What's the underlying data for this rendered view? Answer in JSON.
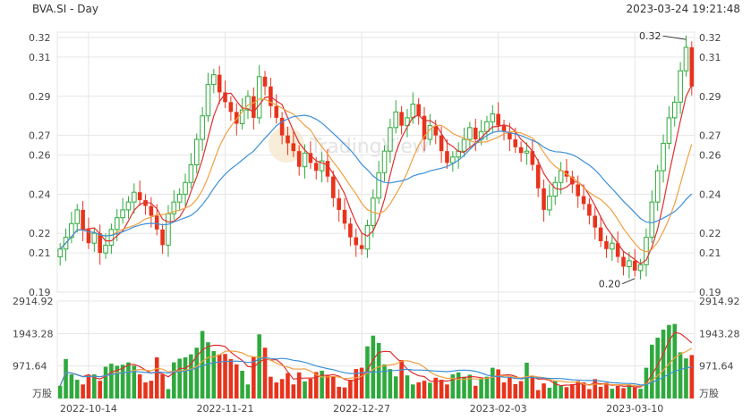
{
  "header": {
    "symbol_title": "BVA.SI - Day",
    "timestamp": "2023-03-24 19:21:48"
  },
  "chart_data": {
    "type": "candlestick",
    "price_axis": {
      "ylim": [
        0.19,
        0.32
      ],
      "ticks": [
        "0.32",
        "0.31",
        "0.29",
        "0.27",
        "0.26",
        "0.24",
        "0.22",
        "0.21",
        "0.19"
      ]
    },
    "volume_axis": {
      "ylim": [
        0,
        2914.92
      ],
      "ticks": [
        "2914.92",
        "1943.28",
        "971.64"
      ],
      "unit_label": "万股"
    },
    "x_ticks": [
      {
        "index": 5,
        "label": "2022-10-14"
      },
      {
        "index": 29,
        "label": "2022-11-21"
      },
      {
        "index": 53,
        "label": "2022-12-27"
      },
      {
        "index": 77,
        "label": "2023-02-03"
      },
      {
        "index": 101,
        "label": "2023-03-10"
      }
    ],
    "annotations": {
      "max_label": "0.32",
      "min_label": "0.20"
    },
    "watermark": "TradingView",
    "colors": {
      "up": "#2eaa3c",
      "down": "#e8331c",
      "ma_short": "#e03030",
      "ma_mid": "#f0a040",
      "ma_long": "#3b8fd8",
      "grid": "#e6e6e6"
    },
    "series": [
      {
        "name": "close",
        "values": [
          0.212,
          0.218,
          0.225,
          0.232,
          0.222,
          0.215,
          0.22,
          0.21,
          0.214,
          0.222,
          0.228,
          0.232,
          0.236,
          0.241,
          0.237,
          0.234,
          0.229,
          0.222,
          0.214,
          0.23,
          0.236,
          0.24,
          0.246,
          0.255,
          0.268,
          0.28,
          0.296,
          0.301,
          0.292,
          0.287,
          0.282,
          0.276,
          0.283,
          0.29,
          0.279,
          0.3,
          0.295,
          0.285,
          0.279,
          0.27,
          0.266,
          0.262,
          0.254,
          0.261,
          0.256,
          0.252,
          0.257,
          0.249,
          0.238,
          0.232,
          0.225,
          0.218,
          0.214,
          0.212,
          0.224,
          0.238,
          0.251,
          0.262,
          0.274,
          0.282,
          0.275,
          0.279,
          0.286,
          0.28,
          0.268,
          0.275,
          0.27,
          0.262,
          0.256,
          0.259,
          0.262,
          0.268,
          0.274,
          0.268,
          0.272,
          0.277,
          0.281,
          0.275,
          0.272,
          0.268,
          0.264,
          0.261,
          0.262,
          0.255,
          0.243,
          0.232,
          0.239,
          0.246,
          0.252,
          0.249,
          0.245,
          0.239,
          0.235,
          0.229,
          0.223,
          0.216,
          0.212,
          0.215,
          0.208,
          0.203,
          0.206,
          0.201,
          0.204,
          0.218,
          0.236,
          0.252,
          0.266,
          0.279,
          0.287,
          0.303,
          0.315,
          0.295
        ]
      },
      {
        "name": "volume",
        "values": [
          380,
          1180,
          720,
          560,
          420,
          690,
          720,
          530,
          950,
          1040,
          980,
          1010,
          1080,
          980,
          720,
          480,
          530,
          1230,
          720,
          280,
          1080,
          1190,
          1230,
          1320,
          1520,
          2020,
          1680,
          1420,
          1320,
          1330,
          1180,
          1020,
          830,
          420,
          1240,
          1920,
          1520,
          650,
          480,
          580,
          760,
          420,
          780,
          510,
          590,
          790,
          830,
          710,
          660,
          350,
          330,
          560,
          880,
          920,
          1560,
          1880,
          1660,
          1020,
          880,
          660,
          1150,
          690,
          420,
          480,
          530,
          470,
          620,
          560,
          420,
          720,
          780,
          650,
          710,
          380,
          580,
          650,
          920,
          870,
          480,
          620,
          430,
          520,
          1070,
          620,
          250,
          450,
          320,
          520,
          380,
          340,
          430,
          520,
          480,
          280,
          580,
          350,
          470,
          290,
          380,
          310,
          420,
          330,
          290,
          920,
          1610,
          1820,
          2060,
          2200,
          2230,
          1380,
          1200,
          1300
        ]
      }
    ]
  }
}
